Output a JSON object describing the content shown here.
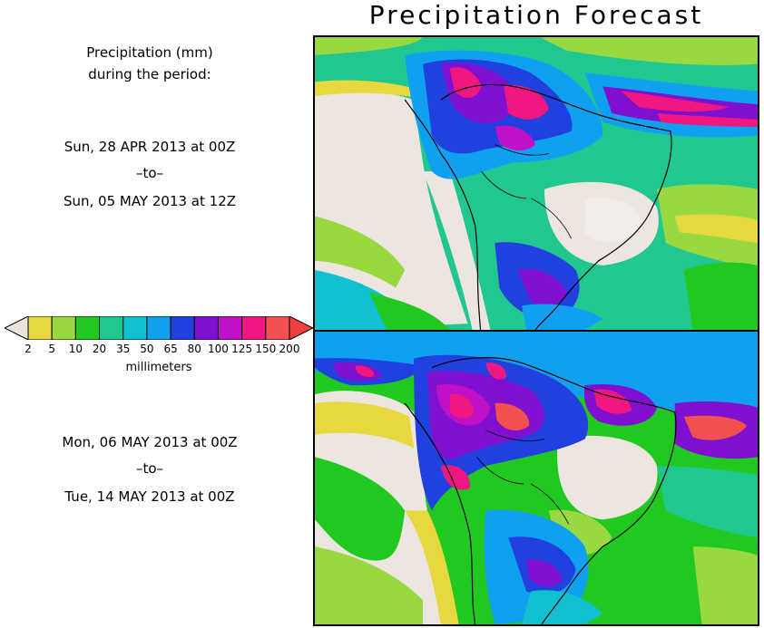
{
  "title": "Precipitation Forecast",
  "header": {
    "line1": "Precipitation (mm)",
    "line2": "during the period:"
  },
  "period1": {
    "start": "Sun, 28 APR 2013 at 00Z",
    "sep": "–to–",
    "end": "Sun, 05 MAY 2013 at 12Z"
  },
  "period2": {
    "start": "Mon, 06 MAY 2013 at 00Z",
    "sep": "–to–",
    "end": "Tue, 14 MAY 2013 at 00Z"
  },
  "legend": {
    "units": "millimeters",
    "ticks": [
      "2",
      "5",
      "10",
      "20",
      "35",
      "50",
      "65",
      "80",
      "100",
      "125",
      "150",
      "200"
    ],
    "colors": [
      "#e8d840",
      "#98d840",
      "#20c820",
      "#20c890",
      "#10c0d0",
      "#10a0f0",
      "#2040e0",
      "#8010d0",
      "#c010c8",
      "#f01880",
      "#f05050"
    ],
    "below_color": "#ece4dc",
    "above_color": "#f04040"
  },
  "colors": {
    "land_dry": "#ede5df",
    "ocean_light": "#e8d840",
    "coast": "#000000"
  }
}
